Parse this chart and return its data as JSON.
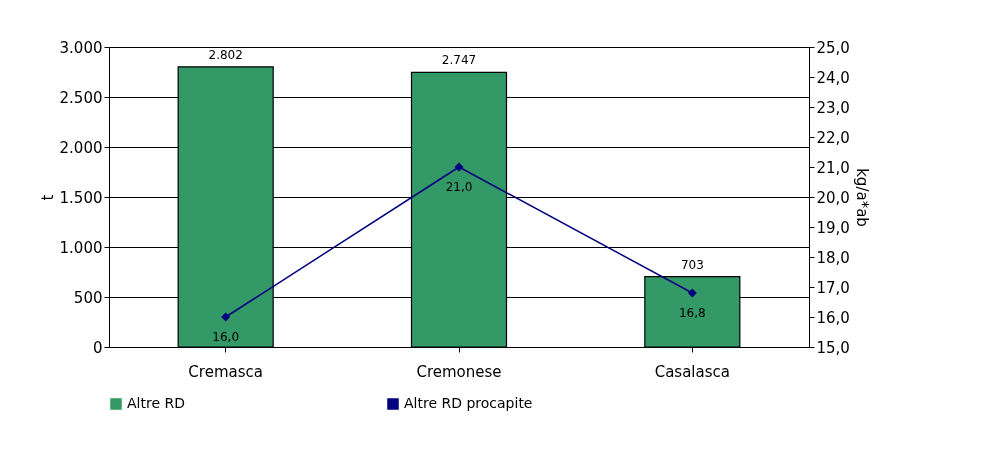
{
  "chart_data": {
    "type": "bar",
    "categories": [
      "Cremasca",
      "Cremonese",
      "Casalasca"
    ],
    "ylabel": "t",
    "y2label": "kg/a*ab",
    "ylim": [
      0,
      3000
    ],
    "yticks": [
      0,
      {
        "value": 500,
        "label": "500"
      },
      {
        "value": 1000,
        "label": "1.000"
      },
      {
        "value": 1500,
        "label": "1.500"
      },
      {
        "value": 2000,
        "label": "2.000"
      },
      {
        "value": 2500,
        "label": "2.500"
      },
      {
        "value": 3000,
        "label": "3.000"
      }
    ],
    "y2lim": [
      15,
      25
    ],
    "y2ticks": [
      {
        "value": 15,
        "label": "15,0"
      },
      {
        "value": 16,
        "label": "16,0"
      },
      {
        "value": 17,
        "label": "17,0"
      },
      {
        "value": 18,
        "label": "18,0"
      },
      {
        "value": 19,
        "label": "19,0"
      },
      {
        "value": 20,
        "label": "20,0"
      },
      {
        "value": 21,
        "label": "21,0"
      },
      {
        "value": 22,
        "label": "22,0"
      },
      {
        "value": 23,
        "label": "23,0"
      },
      {
        "value": 24,
        "label": "24,0"
      },
      {
        "value": 25,
        "label": "25,0"
      }
    ],
    "series": [
      {
        "name": "Altre RD",
        "color": "#339966",
        "values": [
          2802,
          2747,
          703
        ],
        "value_labels": [
          "2.802",
          "2.747",
          "703"
        ]
      },
      {
        "name": "Altre RD procapite",
        "type": "line",
        "axis": "y2",
        "color": "#000080",
        "marker": "diamond",
        "values": [
          16.0,
          21.0,
          16.8
        ],
        "value_labels": [
          "16,0",
          "21,0",
          "16,8"
        ]
      }
    ],
    "grid": "y",
    "legend": "bottom"
  }
}
